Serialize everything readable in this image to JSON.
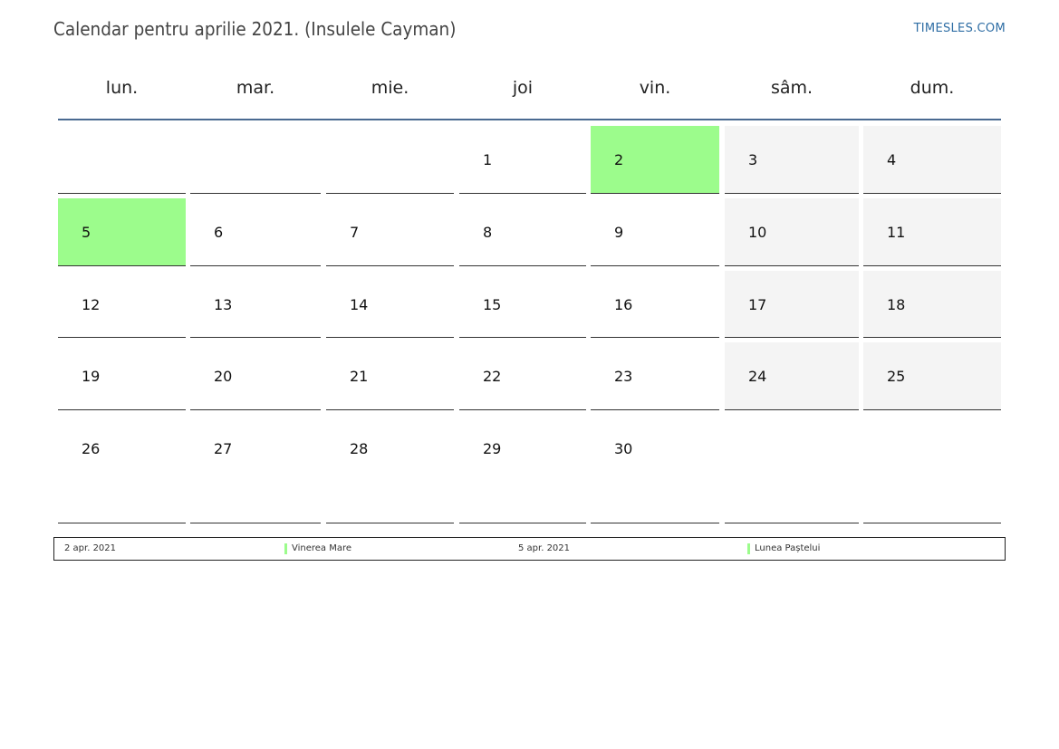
{
  "header": {
    "title": "Calendar pentru aprilie 2021. (Insulele Cayman)",
    "site": "TIMESLES.COM"
  },
  "weekdays": [
    "lun.",
    "mar.",
    "mie.",
    "joi",
    "vin.",
    "sâm.",
    "dum."
  ],
  "weeks": [
    [
      null,
      null,
      null,
      "1",
      "2",
      "3",
      "4"
    ],
    [
      "5",
      "6",
      "7",
      "8",
      "9",
      "10",
      "11"
    ],
    [
      "12",
      "13",
      "14",
      "15",
      "16",
      "17",
      "18"
    ],
    [
      "19",
      "20",
      "21",
      "22",
      "23",
      "24",
      "25"
    ],
    [
      "26",
      "27",
      "28",
      "29",
      "30",
      null,
      null
    ]
  ],
  "holiday_days": [
    "2",
    "5"
  ],
  "colors": {
    "holiday": "#9cfc8c",
    "weekend": "#f4f4f4",
    "header_rule": "#4a6a91",
    "site_link": "#2e6da4"
  },
  "legend": [
    {
      "date": "2 apr. 2021",
      "name": "Vinerea Mare"
    },
    {
      "date": "5 apr. 2021",
      "name": "Lunea Paștelui"
    }
  ]
}
